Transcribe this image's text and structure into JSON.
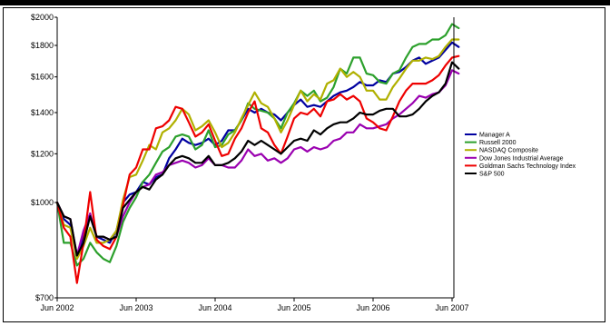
{
  "chart_data": {
    "type": "line",
    "x": [
      "Jun 2002",
      "Jul 2002",
      "Aug 2002",
      "Sep 2002",
      "Oct 2002",
      "Nov 2002",
      "Dec 2002",
      "Jan 2003",
      "Feb 2003",
      "Mar 2003",
      "Apr 2003",
      "May 2003",
      "Jun 2003",
      "Jul 2003",
      "Aug 2003",
      "Sep 2003",
      "Oct 2003",
      "Nov 2003",
      "Dec 2003",
      "Jan 2004",
      "Feb 2004",
      "Mar 2004",
      "Apr 2004",
      "May 2004",
      "Jun 2004",
      "Jul 2004",
      "Aug 2004",
      "Sep 2004",
      "Oct 2004",
      "Nov 2004",
      "Dec 2004",
      "Jan 2005",
      "Feb 2005",
      "Mar 2005",
      "Apr 2005",
      "May 2005",
      "Jun 2005",
      "Jul 2005",
      "Aug 2005",
      "Sep 2005",
      "Oct 2005",
      "Nov 2005",
      "Dec 2005",
      "Jan 2006",
      "Feb 2006",
      "Mar 2006",
      "Apr 2006",
      "May 2006",
      "Jun 2006",
      "Jul 2006",
      "Aug 2006",
      "Sep 2006",
      "Oct 2006",
      "Nov 2006",
      "Dec 2006",
      "Jan 2007",
      "Feb 2007",
      "Mar 2007",
      "Apr 2007",
      "May 2007",
      "Jun 2007",
      "Jul 2007"
    ],
    "x_ticks": [
      "Jun 2002",
      "Jun 2003",
      "Jun 2004",
      "Jun 2005",
      "Jun 2006",
      "Jun 2007"
    ],
    "y_ticks": [
      "$700",
      "$1000",
      "$1200",
      "$1400",
      "$1600",
      "$1800",
      "$2000"
    ],
    "y_tick_values": [
      700,
      1000,
      1200,
      1400,
      1600,
      1800,
      2000
    ],
    "ylim": [
      700,
      2000
    ],
    "y_scale": "log",
    "title": "",
    "xlabel": "",
    "ylabel": "",
    "grid": false,
    "legend_position": "right",
    "series": [
      {
        "name": "Manager A",
        "color": "#0000a0",
        "values": [
          1000,
          940,
          920,
          820,
          880,
          950,
          880,
          870,
          860,
          900,
          1000,
          1030,
          1040,
          1080,
          1070,
          1100,
          1110,
          1180,
          1220,
          1270,
          1250,
          1240,
          1250,
          1270,
          1240,
          1260,
          1310,
          1310,
          1360,
          1420,
          1400,
          1420,
          1400,
          1390,
          1360,
          1400,
          1440,
          1470,
          1430,
          1440,
          1430,
          1460,
          1490,
          1510,
          1520,
          1540,
          1570,
          1550,
          1550,
          1580,
          1570,
          1620,
          1630,
          1660,
          1700,
          1720,
          1680,
          1700,
          1720,
          1770,
          1820,
          1790
        ]
      },
      {
        "name": "Russell 2000",
        "color": "#2ca02c",
        "values": [
          1000,
          860,
          860,
          790,
          810,
          860,
          830,
          810,
          800,
          850,
          930,
          980,
          1020,
          1080,
          1110,
          1160,
          1210,
          1230,
          1280,
          1290,
          1280,
          1220,
          1240,
          1310,
          1230,
          1240,
          1290,
          1310,
          1360,
          1450,
          1420,
          1410,
          1400,
          1370,
          1320,
          1400,
          1450,
          1520,
          1490,
          1520,
          1460,
          1480,
          1540,
          1650,
          1620,
          1720,
          1720,
          1620,
          1610,
          1570,
          1560,
          1620,
          1640,
          1720,
          1790,
          1810,
          1810,
          1840,
          1840,
          1870,
          1950,
          1920
        ]
      },
      {
        "name": "NASDAQ Composite",
        "color": "#b0b000",
        "values": [
          1000,
          920,
          910,
          810,
          850,
          910,
          860,
          860,
          870,
          900,
          1010,
          1100,
          1110,
          1170,
          1240,
          1220,
          1300,
          1320,
          1360,
          1420,
          1390,
          1310,
          1330,
          1360,
          1300,
          1230,
          1250,
          1300,
          1370,
          1440,
          1510,
          1450,
          1430,
          1370,
          1300,
          1360,
          1440,
          1520,
          1460,
          1500,
          1470,
          1560,
          1580,
          1650,
          1600,
          1630,
          1600,
          1520,
          1520,
          1470,
          1470,
          1540,
          1590,
          1650,
          1700,
          1700,
          1720,
          1710,
          1730,
          1790,
          1840,
          1840
        ]
      },
      {
        "name": "Dow Jones Industrial Average",
        "color": "#9a00b0",
        "values": [
          1000,
          950,
          940,
          820,
          900,
          960,
          880,
          880,
          870,
          880,
          950,
          1000,
          1040,
          1060,
          1070,
          1110,
          1120,
          1150,
          1160,
          1170,
          1160,
          1140,
          1150,
          1180,
          1150,
          1150,
          1140,
          1140,
          1170,
          1220,
          1190,
          1200,
          1170,
          1180,
          1160,
          1180,
          1220,
          1230,
          1210,
          1230,
          1220,
          1230,
          1260,
          1270,
          1300,
          1300,
          1340,
          1320,
          1320,
          1330,
          1340,
          1370,
          1390,
          1420,
          1450,
          1490,
          1480,
          1500,
          1510,
          1550,
          1640,
          1620
        ]
      },
      {
        "name": "Goldman Sachs Technology Index",
        "color": "#ee0000",
        "values": [
          1000,
          910,
          880,
          740,
          860,
          1040,
          870,
          850,
          840,
          880,
          990,
          1110,
          1140,
          1220,
          1220,
          1320,
          1330,
          1360,
          1430,
          1420,
          1350,
          1280,
          1300,
          1340,
          1260,
          1190,
          1200,
          1270,
          1320,
          1400,
          1460,
          1320,
          1300,
          1240,
          1200,
          1280,
          1370,
          1400,
          1390,
          1420,
          1380,
          1460,
          1470,
          1500,
          1470,
          1490,
          1460,
          1370,
          1350,
          1320,
          1310,
          1380,
          1460,
          1520,
          1560,
          1560,
          1560,
          1580,
          1610,
          1670,
          1720,
          1730
        ]
      },
      {
        "name": "S&P 500",
        "color": "#000000",
        "values": [
          1000,
          950,
          940,
          820,
          860,
          950,
          880,
          880,
          870,
          880,
          980,
          1010,
          1040,
          1060,
          1050,
          1090,
          1110,
          1150,
          1180,
          1190,
          1180,
          1160,
          1160,
          1190,
          1150,
          1150,
          1160,
          1180,
          1210,
          1260,
          1240,
          1260,
          1240,
          1220,
          1200,
          1230,
          1260,
          1270,
          1260,
          1310,
          1290,
          1320,
          1340,
          1350,
          1350,
          1370,
          1400,
          1390,
          1390,
          1410,
          1420,
          1420,
          1380,
          1380,
          1390,
          1420,
          1460,
          1490,
          1510,
          1560,
          1690,
          1650
        ]
      }
    ]
  }
}
